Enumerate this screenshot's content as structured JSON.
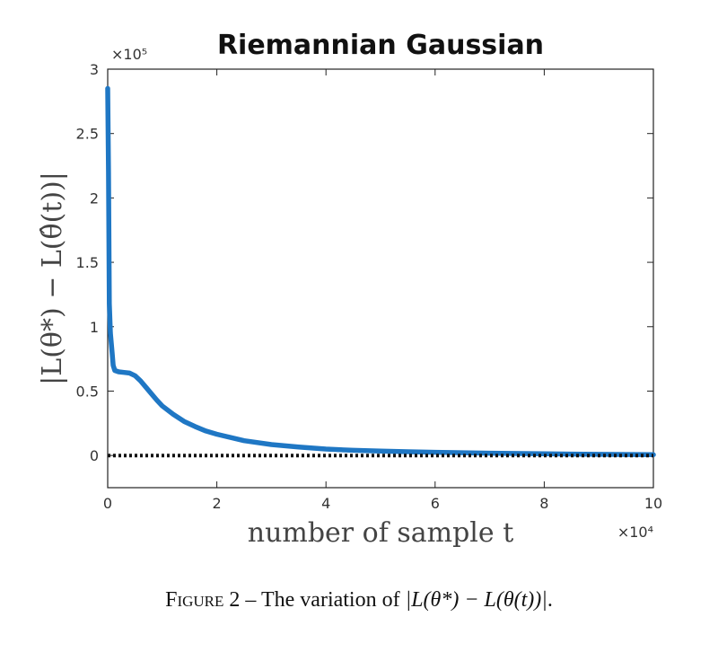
{
  "chart_data": {
    "type": "line",
    "title": "Riemannian Gaussian",
    "xlabel": "number of sample t",
    "ylabel": "|L(θ*) − L(θ̂(t))|",
    "x_multiplier": "×10⁴",
    "y_multiplier": "×10⁵",
    "xlim": [
      0,
      100000
    ],
    "ylim": [
      -25000,
      300000
    ],
    "x_ticks": [
      0,
      20000,
      40000,
      60000,
      80000,
      100000
    ],
    "x_tick_labels": [
      "0",
      "2",
      "4",
      "6",
      "8",
      "10"
    ],
    "y_ticks": [
      0,
      50000,
      100000,
      150000,
      200000,
      250000,
      300000
    ],
    "y_tick_labels": [
      "0",
      "0.5",
      "1",
      "1.5",
      "2",
      "2.5",
      "3"
    ],
    "grid": false,
    "series": [
      {
        "style": "solid",
        "color": "#1f77c4",
        "x": [
          0,
          150,
          300,
          500,
          800,
          1000,
          1300,
          2000,
          3000,
          4000,
          5000,
          6000,
          7000,
          8000,
          9000,
          10000,
          12000,
          14000,
          16000,
          18000,
          20000,
          25000,
          30000,
          35000,
          40000,
          45000,
          50000,
          55000,
          60000,
          70000,
          80000,
          90000,
          100000
        ],
        "y": [
          285000,
          220000,
          118000,
          95000,
          80000,
          70000,
          66000,
          65000,
          64500,
          64000,
          62000,
          58000,
          53000,
          48000,
          43000,
          38500,
          32000,
          26500,
          22500,
          19000,
          16500,
          11500,
          8500,
          6500,
          5000,
          4000,
          3400,
          2900,
          2500,
          1800,
          1300,
          900,
          600
        ]
      },
      {
        "style": "dotted",
        "color": "#111111",
        "x": [
          0,
          100000
        ],
        "y": [
          0,
          0
        ]
      }
    ]
  },
  "caption": {
    "label": "Figure 2",
    "separator": " – ",
    "text": "The variation of ",
    "formula": "|L(θ*) − L(θ(t))|",
    "end": "."
  }
}
